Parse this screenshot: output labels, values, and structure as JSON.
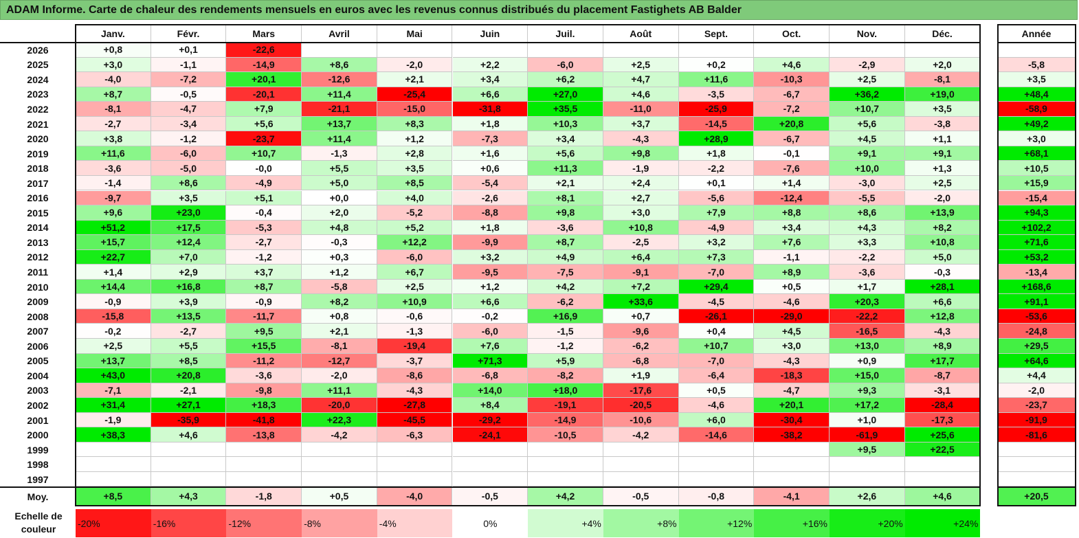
{
  "title": "ADAM Informe. Carte de chaleur des rendements mensuels en euros avec les revenus connus distribués du placement Fastighets AB Balder",
  "chart_data": {
    "type": "heatmap",
    "title": "ADAM Informe. Carte de chaleur des rendements mensuels en euros avec les revenus connus distribués du placement Fastighets AB Balder",
    "columns": [
      "Janv.",
      "Févr.",
      "Mars",
      "Avril",
      "Mai",
      "Juin",
      "Juil.",
      "Août",
      "Sept.",
      "Oct.",
      "Nov.",
      "Déc."
    ],
    "year_column_label": "Année",
    "rows": [
      {
        "year": "2026",
        "values": [
          "+0,8",
          "+0,1",
          "-22,6",
          "",
          "",
          "",
          "",
          "",
          "",
          "",
          "",
          ""
        ],
        "annual": ""
      },
      {
        "year": "2025",
        "values": [
          "+3,0",
          "-1,1",
          "-14,9",
          "+8,6",
          "-2,0",
          "+2,2",
          "-6,0",
          "+2,5",
          "+0,2",
          "+4,6",
          "-2,9",
          "+2,0"
        ],
        "annual": "-5,8"
      },
      {
        "year": "2024",
        "values": [
          "-4,0",
          "-7,2",
          "+20,1",
          "-12,6",
          "+2,1",
          "+3,4",
          "+6,2",
          "+4,7",
          "+11,6",
          "-10,3",
          "+2,5",
          "-8,1"
        ],
        "annual": "+3,5"
      },
      {
        "year": "2023",
        "values": [
          "+8,7",
          "-0,5",
          "-20,1",
          "+11,4",
          "-25,4",
          "+6,6",
          "+27,0",
          "+4,6",
          "-3,5",
          "-6,7",
          "+36,2",
          "+19,0"
        ],
        "annual": "+48,4"
      },
      {
        "year": "2022",
        "values": [
          "-8,1",
          "-4,7",
          "+7,9",
          "-21,1",
          "-15,0",
          "-31,8",
          "+35,5",
          "-11,0",
          "-25,9",
          "-7,2",
          "+10,7",
          "+3,5"
        ],
        "annual": "-58,9"
      },
      {
        "year": "2021",
        "values": [
          "-2,7",
          "-3,4",
          "+5,6",
          "+13,7",
          "+8,3",
          "+1,8",
          "+10,3",
          "+3,7",
          "-14,5",
          "+20,8",
          "+5,6",
          "-3,8"
        ],
        "annual": "+49,2"
      },
      {
        "year": "2020",
        "values": [
          "+3,8",
          "-1,2",
          "-23,7",
          "+11,4",
          "+1,2",
          "-7,3",
          "+3,4",
          "-4,3",
          "+28,9",
          "-6,7",
          "+4,5",
          "+1,1"
        ],
        "annual": "+3,0"
      },
      {
        "year": "2019",
        "values": [
          "+11,6",
          "-6,0",
          "+10,7",
          "-1,3",
          "+2,8",
          "+1,6",
          "+5,6",
          "+9,8",
          "+1,8",
          "-0,1",
          "+9,1",
          "+9,1"
        ],
        "annual": "+68,1"
      },
      {
        "year": "2018",
        "values": [
          "-3,6",
          "-5,0",
          "-0,0",
          "+5,5",
          "+3,5",
          "+0,6",
          "+11,3",
          "-1,9",
          "-2,2",
          "-7,6",
          "+10,0",
          "+1,3"
        ],
        "annual": "+10,5"
      },
      {
        "year": "2017",
        "values": [
          "-1,4",
          "+8,6",
          "-4,9",
          "+5,0",
          "+8,5",
          "-5,4",
          "+2,1",
          "+2,4",
          "+0,1",
          "+1,4",
          "-3,0",
          "+2,5"
        ],
        "annual": "+15,9"
      },
      {
        "year": "2016",
        "values": [
          "-9,7",
          "+3,5",
          "+5,1",
          "+0,0",
          "+4,0",
          "-2,6",
          "+8,1",
          "+2,7",
          "-5,6",
          "-12,4",
          "-5,5",
          "-2,0"
        ],
        "annual": "-15,4"
      },
      {
        "year": "2015",
        "values": [
          "+9,6",
          "+23,0",
          "-0,4",
          "+2,0",
          "-5,2",
          "-8,8",
          "+9,8",
          "+3,0",
          "+7,9",
          "+8,8",
          "+8,6",
          "+13,9"
        ],
        "annual": "+94,3"
      },
      {
        "year": "2014",
        "values": [
          "+51,2",
          "+17,5",
          "-5,3",
          "+4,8",
          "+5,2",
          "+1,8",
          "-3,6",
          "+10,8",
          "-4,9",
          "+3,4",
          "+4,3",
          "+8,2"
        ],
        "annual": "+102,2"
      },
      {
        "year": "2013",
        "values": [
          "+15,7",
          "+12,4",
          "-2,7",
          "-0,3",
          "+12,2",
          "-9,9",
          "+8,7",
          "-2,5",
          "+3,2",
          "+7,6",
          "+3,3",
          "+10,8"
        ],
        "annual": "+71,6"
      },
      {
        "year": "2012",
        "values": [
          "+22,7",
          "+7,0",
          "-1,2",
          "+0,3",
          "-6,0",
          "+3,2",
          "+4,9",
          "+6,4",
          "+7,3",
          "-1,1",
          "-2,2",
          "+5,0"
        ],
        "annual": "+53,2"
      },
      {
        "year": "2011",
        "values": [
          "+1,4",
          "+2,9",
          "+3,7",
          "+1,2",
          "+6,7",
          "-9,5",
          "-7,5",
          "-9,1",
          "-7,0",
          "+8,9",
          "-3,6",
          "-0,3"
        ],
        "annual": "-13,4"
      },
      {
        "year": "2010",
        "values": [
          "+14,4",
          "+16,8",
          "+8,7",
          "-5,8",
          "+2,5",
          "+1,2",
          "+4,2",
          "+7,2",
          "+29,4",
          "+0,5",
          "+1,7",
          "+28,1"
        ],
        "annual": "+168,6"
      },
      {
        "year": "2009",
        "values": [
          "-0,9",
          "+3,9",
          "-0,9",
          "+8,2",
          "+10,9",
          "+6,6",
          "-6,2",
          "+33,6",
          "-4,5",
          "-4,6",
          "+20,3",
          "+6,6"
        ],
        "annual": "+91,1"
      },
      {
        "year": "2008",
        "values": [
          "-15,8",
          "+13,5",
          "-11,7",
          "+0,8",
          "-0,6",
          "-0,2",
          "+16,9",
          "+0,7",
          "-26,1",
          "-29,0",
          "-22,2",
          "+12,8"
        ],
        "annual": "-53,6"
      },
      {
        "year": "2007",
        "values": [
          "-0,2",
          "-2,7",
          "+9,5",
          "+2,1",
          "-1,3",
          "-6,0",
          "-1,5",
          "-9,6",
          "+0,4",
          "+4,5",
          "-16,5",
          "-4,3"
        ],
        "annual": "-24,8"
      },
      {
        "year": "2006",
        "values": [
          "+2,5",
          "+5,5",
          "+15,5",
          "-8,1",
          "-19,4",
          "+7,6",
          "-1,2",
          "-6,2",
          "+10,7",
          "+3,0",
          "+13,0",
          "+8,9"
        ],
        "annual": "+29,5"
      },
      {
        "year": "2005",
        "values": [
          "+13,7",
          "+8,5",
          "-11,2",
          "-12,7",
          "-3,7",
          "+71,3",
          "+5,9",
          "-6,8",
          "-7,0",
          "-4,3",
          "+0,9",
          "+17,7"
        ],
        "annual": "+64,6"
      },
      {
        "year": "2004",
        "values": [
          "+43,0",
          "+20,8",
          "-3,6",
          "-2,0",
          "-8,6",
          "-6,8",
          "-8,2",
          "+1,9",
          "-6,4",
          "-18,3",
          "+15,0",
          "-8,7"
        ],
        "annual": "+4,4"
      },
      {
        "year": "2003",
        "values": [
          "-7,1",
          "-2,1",
          "-9,8",
          "+11,1",
          "-4,3",
          "+14,0",
          "+18,0",
          "-17,6",
          "+0,5",
          "-4,7",
          "+9,3",
          "-3,1"
        ],
        "annual": "-2,0"
      },
      {
        "year": "2002",
        "values": [
          "+31,4",
          "+27,1",
          "+18,3",
          "-20,0",
          "-27,8",
          "+8,4",
          "-19,1",
          "-20,5",
          "-4,6",
          "+20,1",
          "+17,2",
          "-28,4"
        ],
        "annual": "-23,7"
      },
      {
        "year": "2001",
        "values": [
          "-1,9",
          "-35,9",
          "-41,8",
          "+22,3",
          "-45,5",
          "-29,2",
          "-14,9",
          "-10,6",
          "+6,0",
          "-30,4",
          "+1,0",
          "-17,3"
        ],
        "annual": "-91,9"
      },
      {
        "year": "2000",
        "values": [
          "+38,3",
          "+4,6",
          "-13,8",
          "-4,2",
          "-6,3",
          "-24,1",
          "-10,5",
          "-4,2",
          "-14,6",
          "-38,2",
          "-61,9",
          "+25,6"
        ],
        "annual": "-81,6"
      },
      {
        "year": "1999",
        "values": [
          "",
          "",
          "",
          "",
          "",
          "",
          "",
          "",
          "",
          "",
          "+9,5",
          "+22,5"
        ],
        "annual": ""
      },
      {
        "year": "1998",
        "values": [
          "",
          "",
          "",
          "",
          "",
          "",
          "",
          "",
          "",
          "",
          "",
          ""
        ],
        "annual": ""
      },
      {
        "year": "1997",
        "values": [
          "",
          "",
          "",
          "",
          "",
          "",
          "",
          "",
          "",
          "",
          "",
          ""
        ],
        "annual": ""
      }
    ],
    "average": {
      "label": "Moy.",
      "values": [
        "+8,5",
        "+4,3",
        "-1,8",
        "+0,5",
        "-4,0",
        "-0,5",
        "+4,2",
        "-0,5",
        "-0,8",
        "-4,1",
        "+2,6",
        "+4,6"
      ],
      "annual": "+20,5"
    },
    "color_scale": {
      "label": "Echelle de couleur",
      "steps": [
        "-20%",
        "-16%",
        "-12%",
        "-8%",
        "-4%",
        "0%",
        "+4%",
        "+8%",
        "+12%",
        "+16%",
        "+20%",
        "+24%"
      ],
      "negative_color": "#ff0000",
      "positive_color": "#00ee00",
      "neutral_color": "#ffffff"
    }
  }
}
